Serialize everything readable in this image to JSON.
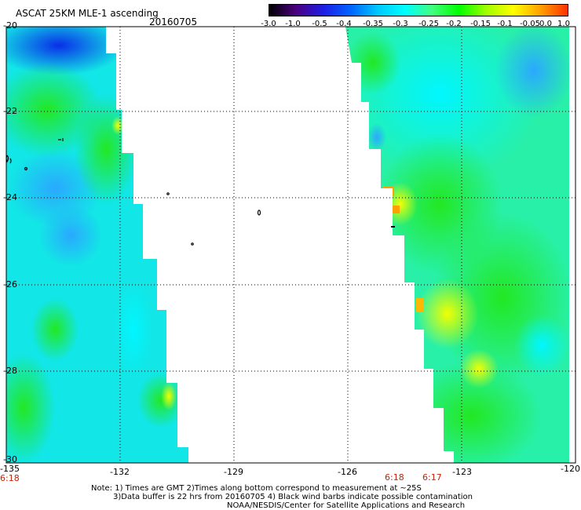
{
  "header": {
    "title": "ASCAT 25KM MLE-1 ascending",
    "date": "20160705"
  },
  "colorbar": {
    "labels": [
      "-3.0",
      "-1.0",
      "-0.5",
      "-0.4",
      "-0.35",
      "-0.3",
      "-0.25",
      "-0.2",
      "-0.15",
      "-0.1",
      "-0.05",
      "0.0",
      "1.0"
    ],
    "colors": [
      "#000000",
      "#4b0082",
      "#1e1ee6",
      "#0064ff",
      "#00c8ff",
      "#00ffff",
      "#40ff80",
      "#00ff00",
      "#a0ff00",
      "#ffff00",
      "#ffa000",
      "#ff3000"
    ]
  },
  "map": {
    "lon_labels": [
      "-135",
      "-132",
      "-129",
      "-126",
      "-123",
      "-120"
    ],
    "lat_labels": [
      "-20",
      "-22",
      "-24",
      "-26",
      "-28",
      "-30"
    ],
    "time_labels": [
      "6:18",
      "6:18",
      "6:17"
    ]
  },
  "footer": {
    "line1": "Note: 1) Times are GMT 2)Times along bottom correspond to measurement at ~25S",
    "line2": "3)Data buffer is 22 hrs from 20160705 4) Black wind barbs indicate possible contamination",
    "line3": "NOAA/NESDIS/Center for Satellite Applications and Research"
  }
}
